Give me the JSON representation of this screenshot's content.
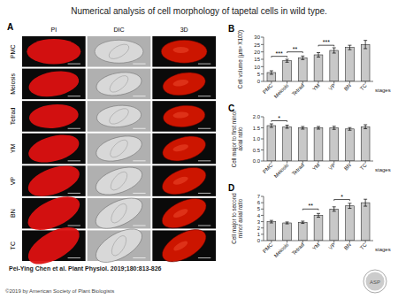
{
  "title": "Numerical analysis of cell morphology of tapetal cells in wild type.",
  "annotations": [
    "Pei-Ying Chen et al. Plant Physiol. 2019;180:813-826",
    "©2019 by American Society of Plant Biologists",
    "ASP"
  ],
  "chart_data": [
    {
      "type": "image_grid",
      "annotations": [
        "A"
      ],
      "categories": [
        "PI",
        "DIC",
        "3D"
      ],
      "rows": [
        "PMC",
        "Meiosis",
        "Tetrad",
        "YM",
        "VP",
        "BN",
        "TC"
      ]
    },
    {
      "type": "bar",
      "annotations": [
        "B",
        "stages",
        {
          "text": "***",
          "from": "PMC",
          "to": "Meiosis",
          "y": 17.0
        },
        {
          "text": "**",
          "from": "Meiosis",
          "to": "Tetrad",
          "y": 20.0
        },
        {
          "text": "***",
          "from": "YM",
          "to": "VP",
          "y": 24.5
        }
      ],
      "categories": [
        "PMC",
        "Meiosis",
        "Tetrad",
        "YM",
        "VP",
        "BN",
        "TC"
      ],
      "values": [
        6,
        14,
        16,
        18,
        21,
        23,
        25
      ],
      "errors": [
        1.2,
        1.0,
        1.2,
        1.5,
        1.8,
        1.5,
        2.8
      ],
      "color": "#c8c8c8",
      "ylabel": "Cell volume (μm³ X100)",
      "ylim": [
        0,
        30
      ],
      "yticks": [
        0,
        5,
        10,
        15,
        20,
        25,
        30
      ]
    },
    {
      "type": "bar",
      "annotations": [
        "C",
        "stages",
        {
          "text": "*",
          "from": "PMC",
          "to": "Meiosis",
          "y": 1.82
        }
      ],
      "categories": [
        "PMC",
        "Meiosis",
        "Tetrad",
        "YM",
        "VP",
        "BN",
        "TC"
      ],
      "values": [
        1.6,
        1.55,
        1.5,
        1.5,
        1.5,
        1.45,
        1.55
      ],
      "errors": [
        0.08,
        0.07,
        0.06,
        0.06,
        0.07,
        0.06,
        0.09
      ],
      "color": "#c8c8c8",
      "ylabel": "Cell major to first minor\naxial ratio",
      "ylim": [
        0,
        2
      ],
      "yticks": [
        {
          "value": 0,
          "label": "0.0"
        },
        {
          "value": 0.5,
          "label": "0.5"
        },
        {
          "value": 1,
          "label": "1.0"
        },
        {
          "value": 1.5,
          "label": "1.5"
        },
        {
          "value": 2,
          "label": "2.0"
        }
      ]
    },
    {
      "type": "bar",
      "annotations": [
        "D",
        "stages",
        {
          "text": "**",
          "from": "Tetrad",
          "to": "YM",
          "y": 5.0
        },
        {
          "text": "*",
          "from": "VP",
          "to": "BN",
          "y": 6.5
        }
      ],
      "categories": [
        "PMC",
        "Meiosis",
        "Tetrad",
        "YM",
        "VP",
        "BN",
        "TC"
      ],
      "values": [
        3.0,
        2.8,
        2.9,
        4.0,
        5.0,
        5.5,
        6.0
      ],
      "errors": [
        0.2,
        0.15,
        0.18,
        0.3,
        0.35,
        0.4,
        0.55
      ],
      "color": "#c8c8c8",
      "ylabel": "Cell major to second\nminor axial ratio",
      "ylim": [
        0,
        7
      ],
      "yticks": [
        0,
        1,
        2,
        3,
        4,
        5,
        6,
        7
      ]
    }
  ]
}
